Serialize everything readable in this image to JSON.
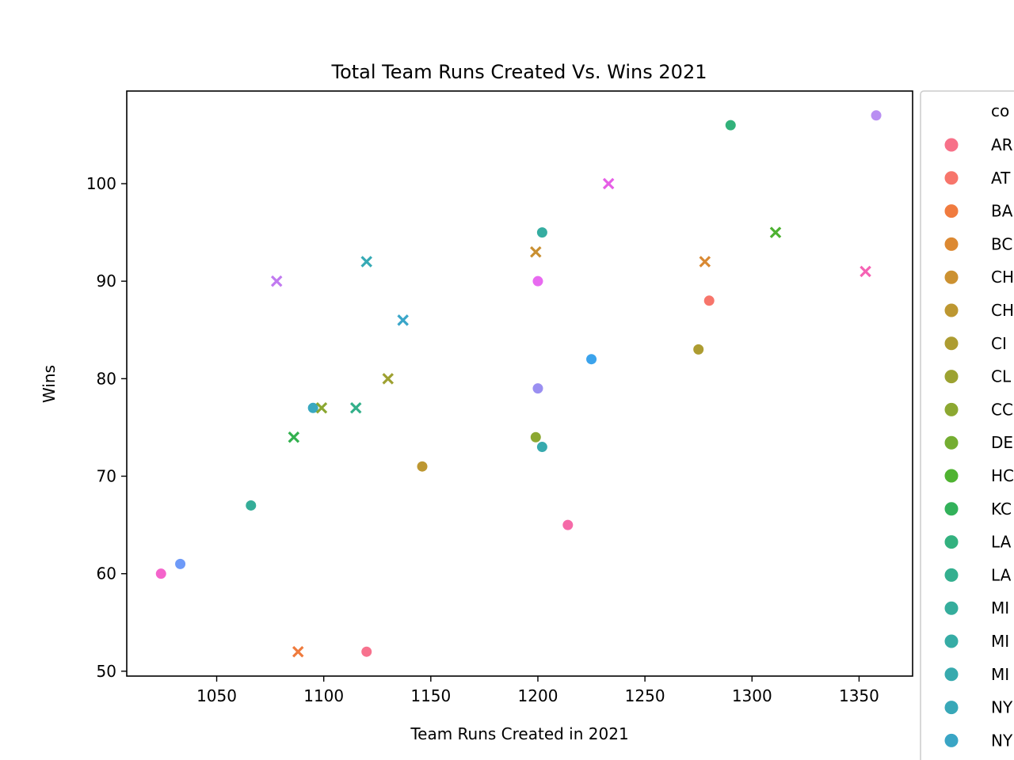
{
  "chart_data": {
    "type": "scatter",
    "title": "Total Team Runs Created Vs. Wins 2021",
    "xlabel": "Team Runs Created in 2021",
    "ylabel": "Wins",
    "xlim": [
      1008,
      1375
    ],
    "ylim": [
      49.5,
      109.5
    ],
    "xticks": [
      1050,
      1100,
      1150,
      1200,
      1250,
      1300,
      1350
    ],
    "yticks": [
      50,
      60,
      70,
      80,
      90,
      100
    ],
    "grid": false,
    "legend": {
      "placement": "right (outside, clipped)",
      "title": "co",
      "entries": [
        {
          "label": "AR",
          "color": "#f77189"
        },
        {
          "label": "AT",
          "color": "#f7756b"
        },
        {
          "label": "BA",
          "color": "#f07b3f"
        },
        {
          "label": "BC",
          "color": "#dc8932"
        },
        {
          "label": "CH",
          "color": "#cc9131"
        },
        {
          "label": "CH",
          "color": "#bd9731"
        },
        {
          "label": "CI",
          "color": "#ad9c31"
        },
        {
          "label": "CL",
          "color": "#9ca231"
        },
        {
          "label": "CC",
          "color": "#8ca831"
        },
        {
          "label": "DE",
          "color": "#74ad31"
        },
        {
          "label": "HC",
          "color": "#4fb331"
        },
        {
          "label": "KC",
          "color": "#32b15a"
        },
        {
          "label": "LA",
          "color": "#33b17f"
        },
        {
          "label": "LA",
          "color": "#34af8f"
        },
        {
          "label": "MI",
          "color": "#35ad9c"
        },
        {
          "label": "MI",
          "color": "#36aca5"
        },
        {
          "label": "MI",
          "color": "#37aaae"
        },
        {
          "label": "NY",
          "color": "#38a8b8"
        },
        {
          "label": "NY",
          "color": "#3aa5c5"
        }
      ]
    },
    "series": [
      {
        "marker": "circle",
        "points": [
          {
            "x": 1120,
            "y": 52,
            "color": "#f7728e"
          },
          {
            "x": 1280,
            "y": 88,
            "color": "#f7756b"
          },
          {
            "x": 1146,
            "y": 71,
            "color": "#bd9731"
          },
          {
            "x": 1275,
            "y": 83,
            "color": "#ad9c31"
          },
          {
            "x": 1199,
            "y": 74,
            "color": "#8ca831"
          },
          {
            "x": 1290,
            "y": 106,
            "color": "#32b17a"
          },
          {
            "x": 1066,
            "y": 67,
            "color": "#34ad98"
          },
          {
            "x": 1202,
            "y": 95,
            "color": "#35ada1"
          },
          {
            "x": 1202,
            "y": 73,
            "color": "#37aaae"
          },
          {
            "x": 1095,
            "y": 77,
            "color": "#39a8c0"
          },
          {
            "x": 1225,
            "y": 82,
            "color": "#3ba3ec"
          },
          {
            "x": 1033,
            "y": 61,
            "color": "#6e9af8"
          },
          {
            "x": 1200,
            "y": 79,
            "color": "#9a8ff1"
          },
          {
            "x": 1358,
            "y": 107,
            "color": "#b98ff2"
          },
          {
            "x": 1200,
            "y": 90,
            "color": "#e86af0"
          },
          {
            "x": 1024,
            "y": 60,
            "color": "#f464cb"
          },
          {
            "x": 1214,
            "y": 65,
            "color": "#f56aa8"
          }
        ]
      },
      {
        "marker": "x",
        "points": [
          {
            "x": 1088,
            "y": 52,
            "color": "#ef7b3d"
          },
          {
            "x": 1278,
            "y": 92,
            "color": "#d98933"
          },
          {
            "x": 1199,
            "y": 93,
            "color": "#c98f31"
          },
          {
            "x": 1130,
            "y": 80,
            "color": "#9ea131"
          },
          {
            "x": 1099,
            "y": 77,
            "color": "#8aa731"
          },
          {
            "x": 1311,
            "y": 95,
            "color": "#4db131"
          },
          {
            "x": 1086,
            "y": 74,
            "color": "#33b14f"
          },
          {
            "x": 1115,
            "y": 77,
            "color": "#33b08a"
          },
          {
            "x": 1120,
            "y": 92,
            "color": "#36aab5"
          },
          {
            "x": 1137,
            "y": 86,
            "color": "#3aa6c9"
          },
          {
            "x": 1078,
            "y": 90,
            "color": "#c17af0"
          },
          {
            "x": 1233,
            "y": 100,
            "color": "#e65ee6"
          },
          {
            "x": 1353,
            "y": 91,
            "color": "#f562b4"
          }
        ]
      }
    ]
  }
}
